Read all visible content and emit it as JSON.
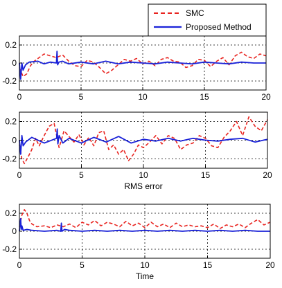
{
  "legend": {
    "entries": [
      {
        "label": "SMC",
        "color": "#e8231f",
        "style": "dashed"
      },
      {
        "label": "Proposed Method",
        "color": "#1a22d8",
        "style": "solid"
      }
    ]
  },
  "chart_data": [
    {
      "type": "line",
      "xlabel": "",
      "ylabel": "",
      "xlim": [
        0,
        20
      ],
      "ylim": [
        -0.3,
        0.3
      ],
      "xticks": [
        0,
        5,
        10,
        15,
        20
      ],
      "yticks": [
        -0.2,
        0,
        0.2
      ],
      "grid": true,
      "series": [
        {
          "name": "SMC",
          "color": "#e8231f",
          "style": "dashed",
          "x": [
            0,
            0.3,
            0.6,
            0.9,
            1.2,
            1.5,
            2.0,
            2.5,
            3.0,
            3.5,
            4.0,
            4.5,
            5.0,
            5.5,
            6.0,
            6.5,
            7.0,
            7.5,
            8.0,
            8.5,
            9.0,
            9.5,
            10.0,
            10.5,
            11.0,
            11.5,
            12.0,
            12.5,
            13.0,
            13.5,
            14.0,
            14.5,
            15.0,
            15.5,
            16.0,
            16.5,
            17.0,
            17.5,
            18.0,
            18.5,
            19.0,
            19.5,
            20.0
          ],
          "y": [
            -0.05,
            -0.15,
            -0.12,
            -0.03,
            0.02,
            0.05,
            0.1,
            0.08,
            0.06,
            0.09,
            0.02,
            -0.03,
            -0.04,
            0.03,
            0.01,
            -0.05,
            -0.12,
            -0.08,
            -0.02,
            0.04,
            0.02,
            0.05,
            -0.01,
            0.02,
            -0.03,
            0.04,
            0.06,
            0.02,
            0.01,
            -0.05,
            -0.03,
            0.04,
            0.03,
            -0.04,
            0.02,
            0.06,
            -0.02,
            0.08,
            0.12,
            0.07,
            0.05,
            0.1,
            0.08
          ]
        },
        {
          "name": "Proposed Method",
          "color": "#1a22d8",
          "style": "solid",
          "x": [
            0,
            0.1,
            0.2,
            0.3,
            0.5,
            0.8,
            1.5,
            2.0,
            2.5,
            3.0,
            3.05,
            3.1,
            3.2,
            3.5,
            4.0,
            5.0,
            6.0,
            7.0,
            8.0,
            9.0,
            10.0,
            11.0,
            12.0,
            13.0,
            14.0,
            15.0,
            16.0,
            17.0,
            18.0,
            19.0,
            20.0
          ],
          "y": [
            0.0,
            -0.18,
            0.0,
            -0.08,
            -0.02,
            0.01,
            0.02,
            -0.01,
            0.01,
            0.0,
            0.13,
            -0.02,
            0.01,
            0.02,
            -0.01,
            0.01,
            -0.01,
            0.02,
            -0.01,
            0.01,
            0.0,
            -0.01,
            0.01,
            0.0,
            -0.01,
            0.01,
            0.0,
            -0.01,
            0.01,
            0.0,
            0.0
          ]
        }
      ]
    },
    {
      "type": "line",
      "xlabel": "RMS error",
      "ylabel": "",
      "xlim": [
        0,
        20
      ],
      "ylim": [
        -0.3,
        0.3
      ],
      "xticks": [
        0,
        5,
        10,
        15,
        20
      ],
      "yticks": [
        -0.2,
        0,
        0.2
      ],
      "grid": true,
      "series": [
        {
          "name": "SMC",
          "color": "#e8231f",
          "style": "dashed",
          "x": [
            0,
            0.2,
            0.4,
            0.7,
            1.0,
            1.3,
            1.6,
            2.0,
            2.4,
            2.8,
            3.2,
            3.6,
            4.0,
            4.4,
            4.8,
            5.2,
            5.6,
            6.0,
            6.4,
            6.8,
            7.2,
            7.6,
            8.0,
            8.4,
            8.8,
            9.2,
            9.6,
            10.0,
            10.5,
            11.0,
            11.5,
            12.0,
            12.5,
            13.0,
            13.5,
            14.0,
            14.5,
            15.0,
            15.5,
            16.0,
            16.5,
            17.0,
            17.5,
            18.0,
            18.5,
            19.0,
            19.5,
            20.0
          ],
          "y": [
            -0.05,
            -0.2,
            -0.25,
            -0.18,
            -0.1,
            0.02,
            -0.06,
            0.05,
            0.15,
            0.18,
            -0.08,
            0.1,
            0.04,
            -0.02,
            0.06,
            -0.05,
            0.03,
            -0.06,
            0.08,
            0.1,
            -0.1,
            -0.05,
            -0.15,
            -0.1,
            -0.22,
            -0.15,
            -0.05,
            -0.08,
            -0.02,
            0.05,
            -0.04,
            0.05,
            0.02,
            -0.1,
            -0.05,
            -0.03,
            0.05,
            0.02,
            -0.06,
            -0.08,
            0.03,
            0.1,
            0.2,
            0.05,
            0.25,
            0.15,
            0.1,
            0.22
          ]
        },
        {
          "name": "Proposed Method",
          "color": "#1a22d8",
          "style": "solid",
          "x": [
            0,
            0.1,
            0.2,
            0.3,
            0.5,
            1.0,
            2.0,
            3.0,
            3.05,
            3.1,
            3.2,
            3.5,
            4.0,
            5.0,
            6.0,
            7.0,
            8.0,
            9.0,
            10.0,
            11.0,
            12.0,
            13.0,
            14.0,
            15.0,
            16.0,
            17.0,
            18.0,
            19.0,
            20.0
          ],
          "y": [
            0.0,
            -0.15,
            0.05,
            -0.06,
            -0.02,
            0.03,
            -0.03,
            0.02,
            0.12,
            -0.04,
            0.05,
            -0.03,
            0.02,
            -0.03,
            0.03,
            -0.02,
            0.04,
            -0.03,
            0.01,
            -0.01,
            0.02,
            -0.01,
            0.02,
            0.0,
            -0.01,
            0.01,
            0.02,
            -0.02,
            0.01
          ]
        }
      ]
    },
    {
      "type": "line",
      "xlabel": "Time",
      "ylabel": "",
      "xlim": [
        0,
        20
      ],
      "ylim": [
        -0.3,
        0.3
      ],
      "xticks": [
        0,
        5,
        10,
        15,
        20
      ],
      "yticks": [
        -0.2,
        0,
        0.2
      ],
      "grid": true,
      "series": [
        {
          "name": "SMC",
          "color": "#e8231f",
          "style": "dashed",
          "x": [
            0,
            0.2,
            0.4,
            0.6,
            0.8,
            1.0,
            1.4,
            2.0,
            2.5,
            3.0,
            3.5,
            4.0,
            4.5,
            5.0,
            5.5,
            6.0,
            6.5,
            7.0,
            7.5,
            8.0,
            8.5,
            9.0,
            9.5,
            10.0,
            10.5,
            11.0,
            11.5,
            12.0,
            12.5,
            13.0,
            13.5,
            14.0,
            14.5,
            15.0,
            15.5,
            16.0,
            16.5,
            17.0,
            17.5,
            18.0,
            18.5,
            19.0,
            19.5,
            20.0
          ],
          "y": [
            0.05,
            0.18,
            0.24,
            0.2,
            0.12,
            0.08,
            0.05,
            0.06,
            0.04,
            0.07,
            0.05,
            0.08,
            0.04,
            0.1,
            0.07,
            0.12,
            0.06,
            0.1,
            0.08,
            0.05,
            0.11,
            0.06,
            0.09,
            0.04,
            0.1,
            0.05,
            0.08,
            0.04,
            0.09,
            0.05,
            0.07,
            0.05,
            0.06,
            0.04,
            0.08,
            0.03,
            0.07,
            0.05,
            0.08,
            0.04,
            0.09,
            0.13,
            0.07,
            0.1
          ]
        },
        {
          "name": "Proposed Method",
          "color": "#1a22d8",
          "style": "solid",
          "x": [
            0,
            0.1,
            0.15,
            0.2,
            0.3,
            0.6,
            1.0,
            2.0,
            3.0,
            3.3,
            3.35,
            3.4,
            3.6,
            4.0,
            5.0,
            6.0,
            7.0,
            8.0,
            9.0,
            10.0,
            11.0,
            12.0,
            13.0,
            14.0,
            15.0,
            16.0,
            17.0,
            18.0,
            19.0,
            20.0
          ],
          "y": [
            0.0,
            0.14,
            0.02,
            0.06,
            0.01,
            0.02,
            0.01,
            0.0,
            0.01,
            0.0,
            0.09,
            0.0,
            0.02,
            0.01,
            0.0,
            0.01,
            0.0,
            0.01,
            0.0,
            0.01,
            0.0,
            0.01,
            0.0,
            0.01,
            0.0,
            0.01,
            0.0,
            0.01,
            0.0,
            0.0
          ]
        }
      ]
    }
  ]
}
